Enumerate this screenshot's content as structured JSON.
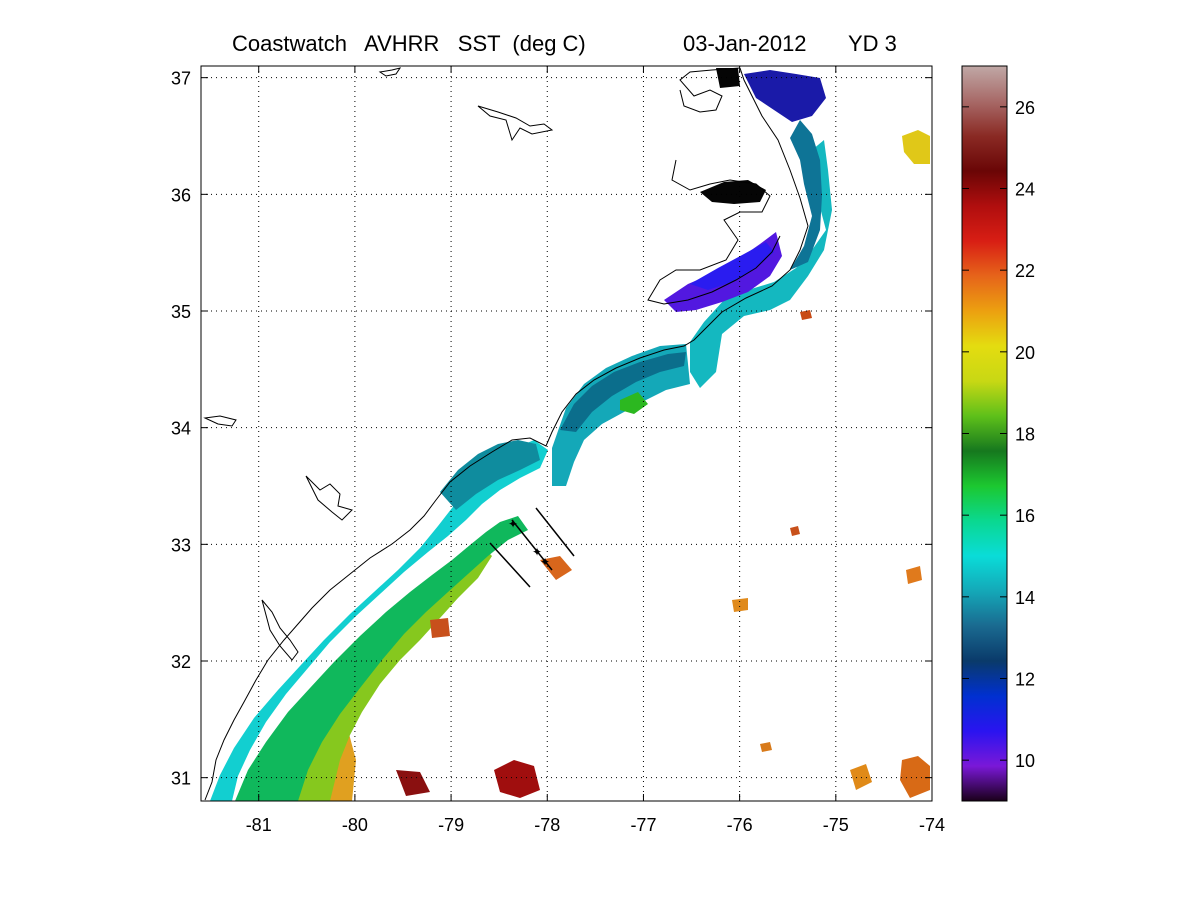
{
  "title": {
    "product": "Coastwatch   AVHRR   SST  (deg C)",
    "date": "03-Jan-2012",
    "yearday": "YD 3"
  },
  "map": {
    "x_ticks": [
      {
        "value": -81,
        "label": "-81"
      },
      {
        "value": -80,
        "label": "-80"
      },
      {
        "value": -79,
        "label": "-79"
      },
      {
        "value": -78,
        "label": "-78"
      },
      {
        "value": -77,
        "label": "-77"
      },
      {
        "value": -76,
        "label": "-76"
      },
      {
        "value": -75,
        "label": "-75"
      },
      {
        "value": -74,
        "label": "-74"
      }
    ],
    "y_ticks": [
      {
        "value": 31,
        "label": "31"
      },
      {
        "value": 32,
        "label": "32"
      },
      {
        "value": 33,
        "label": "33"
      },
      {
        "value": 34,
        "label": "34"
      },
      {
        "value": 35,
        "label": "35"
      },
      {
        "value": 36,
        "label": "36"
      },
      {
        "value": 37,
        "label": "37"
      }
    ],
    "lon_range": [
      -81.6,
      -74.0
    ],
    "lat_range": [
      30.8,
      37.1
    ],
    "grid": "dotted"
  },
  "colorbar": {
    "ticks": [
      {
        "value": 10,
        "label": "10"
      },
      {
        "value": 12,
        "label": "12"
      },
      {
        "value": 14,
        "label": "14"
      },
      {
        "value": 16,
        "label": "16"
      },
      {
        "value": 18,
        "label": "18"
      },
      {
        "value": 20,
        "label": "20"
      },
      {
        "value": 22,
        "label": "22"
      },
      {
        "value": 24,
        "label": "24"
      },
      {
        "value": 26,
        "label": "26"
      }
    ],
    "range": [
      9,
      27
    ],
    "colors": [
      "#1a001a",
      "#7a18d8",
      "#2a14f0",
      "#0030d0",
      "#0a3a6a",
      "#1a6a90",
      "#14a8b8",
      "#0adcd8",
      "#0ad890",
      "#1cc830",
      "#16781e",
      "#5ec01a",
      "#c8d814",
      "#e4dc10",
      "#eca010",
      "#e6641a",
      "#d81e14",
      "#b00e0e",
      "#6a0606",
      "#8a2a24",
      "#a86a68",
      "#c0a8a6"
    ]
  }
}
